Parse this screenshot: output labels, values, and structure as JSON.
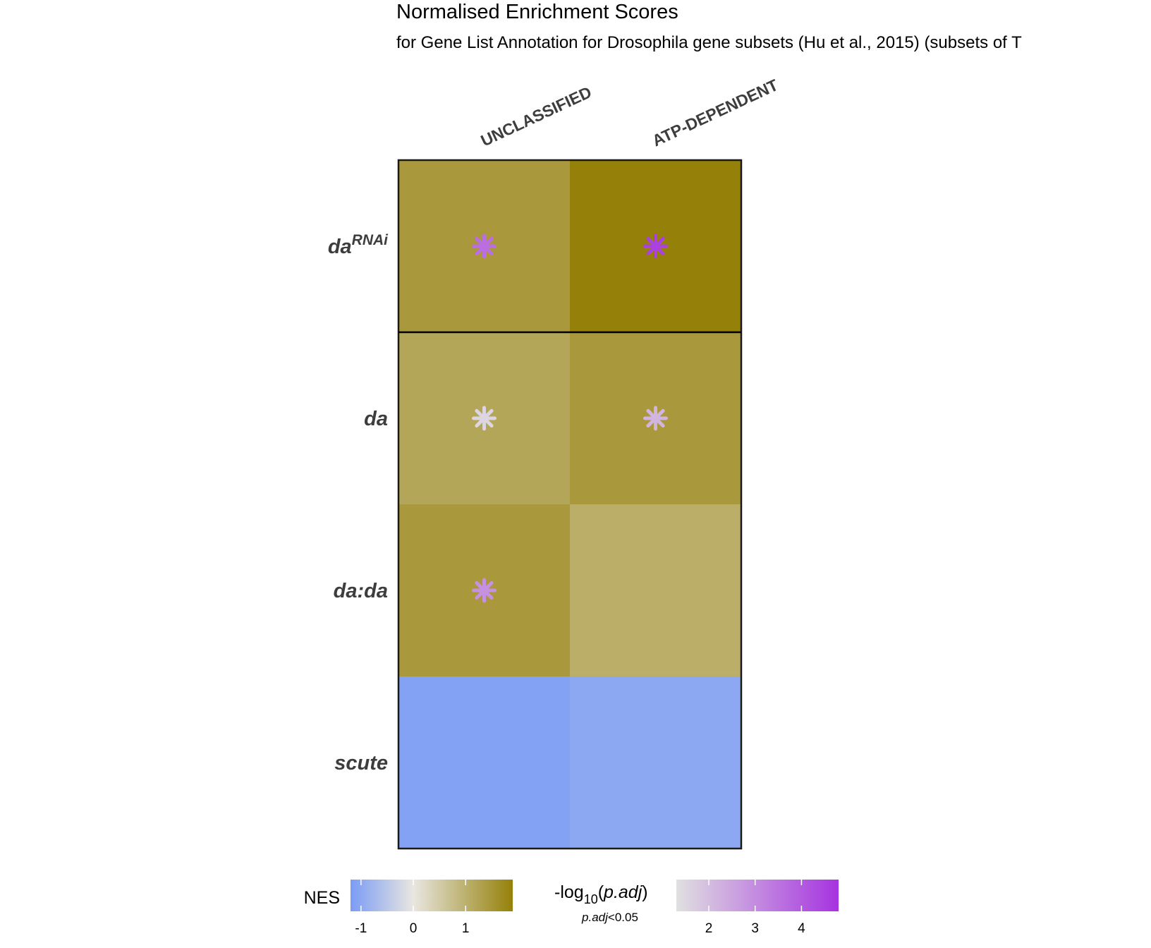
{
  "chart_data": {
    "type": "heatmap",
    "title": "Normalised Enrichment Scores",
    "subtitle": "for Gene List Annotation for Drosophila gene subsets (Hu et al., 2015) (subsets of T",
    "columns": [
      "UNCLASSIFIED",
      "ATP-DEPENDENT"
    ],
    "rows": [
      {
        "base": "da",
        "sup": "RNAi"
      },
      {
        "base": "da",
        "sup": ""
      },
      {
        "base": "da:da",
        "sup": ""
      },
      {
        "base": "scute",
        "sup": ""
      }
    ],
    "nes": [
      [
        1.45,
        1.9
      ],
      [
        1.2,
        1.45
      ],
      [
        1.45,
        1.05
      ],
      [
        -1.1,
        -1.0
      ]
    ],
    "neglog10_padj": [
      [
        3.6,
        4.5
      ],
      [
        1.5,
        2.2
      ],
      [
        2.9,
        null
      ],
      [
        null,
        null
      ]
    ],
    "significance_marker": "*",
    "colors": {
      "nes_low": "#7b9cf5",
      "nes_mid": "#e8e6e0",
      "nes_high": "#958109",
      "sig_low": "#e0e0e0",
      "sig_high": "#a633e0",
      "grid": "#1a1a1a"
    },
    "legend_nes": {
      "title": "NES",
      "range": [
        -1.2,
        1.9
      ],
      "ticks": [
        -1,
        0,
        1
      ],
      "tick_labels": [
        "-1",
        "0",
        "1"
      ]
    },
    "legend_sig": {
      "title_prefix": "-log",
      "title_sub": "10",
      "title_arg": "p.adj",
      "note_italic": "p.adj",
      "note_rest": "<0.05",
      "range": [
        1.3,
        4.8
      ],
      "ticks": [
        2,
        3,
        4
      ],
      "tick_labels": [
        "2",
        "3",
        "4"
      ]
    }
  }
}
